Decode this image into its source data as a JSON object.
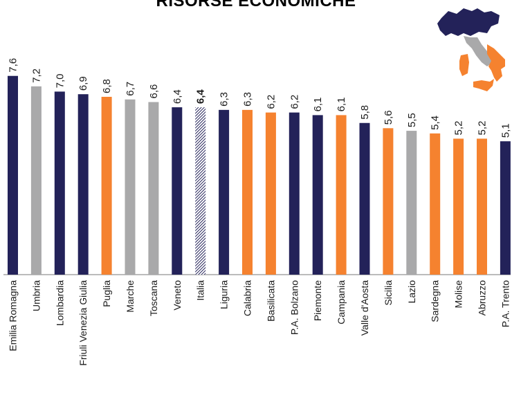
{
  "page": {
    "title": "RISORSE ECONOMICHE"
  },
  "colors": {
    "north": "#232259",
    "center": "#a9a9aa",
    "south": "#f5822f",
    "italy": "#232259"
  },
  "chart_data": {
    "type": "bar",
    "title": "RISORSE ECONOMICHE",
    "categories": [
      "Emilia Romagna",
      "Umbria",
      "Lombardia",
      "Friuli Venezia Giulia",
      "Puglia",
      "Marche",
      "Toscana",
      "Veneto",
      "Italia",
      "Liguria",
      "Calabria",
      "Basilicata",
      "P.A. Bolzano",
      "Piemonte",
      "Campania",
      "Valle d'Aosta",
      "Sicilia",
      "Lazio",
      "Sardegna",
      "Molise",
      "Abruzzo",
      "P.A. Trento"
    ],
    "values": [
      7.6,
      7.2,
      7.0,
      6.9,
      6.8,
      6.7,
      6.6,
      6.4,
      6.4,
      6.3,
      6.3,
      6.2,
      6.2,
      6.1,
      6.1,
      5.8,
      5.6,
      5.5,
      5.4,
      5.2,
      5.2,
      5.1
    ],
    "labels": [
      "7,6",
      "7,2",
      "7,0",
      "6,9",
      "6,8",
      "6,7",
      "6,6",
      "6,4",
      "6,4",
      "6,3",
      "6,3",
      "6,2",
      "6,2",
      "6,1",
      "6,1",
      "5,8",
      "5,6",
      "5,5",
      "5,4",
      "5,2",
      "5,2",
      "5,1"
    ],
    "groups": [
      "north",
      "center",
      "north",
      "north",
      "south",
      "center",
      "center",
      "north",
      "italy",
      "north",
      "south",
      "south",
      "north",
      "north",
      "south",
      "north",
      "south",
      "center",
      "south",
      "south",
      "south",
      "north"
    ],
    "xlabel": "",
    "ylabel": "",
    "grid": false,
    "legend": "none"
  }
}
